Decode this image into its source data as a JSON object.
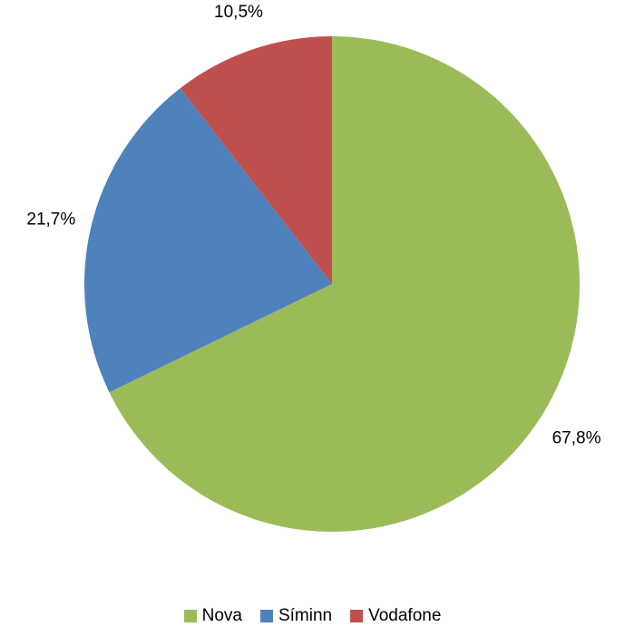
{
  "chart_data": {
    "type": "pie",
    "title": "",
    "categories": [
      "Nova",
      "Síminn",
      "Vodafone"
    ],
    "values": [
      67.8,
      21.7,
      10.5
    ],
    "labels": [
      "67,8%",
      "21,7%",
      "10,5%"
    ],
    "colors": [
      "#9BBB59",
      "#4F81BD",
      "#C0504D"
    ],
    "start_angle": "12 o'clock",
    "direction": "clockwise",
    "legend_position": "bottom"
  }
}
